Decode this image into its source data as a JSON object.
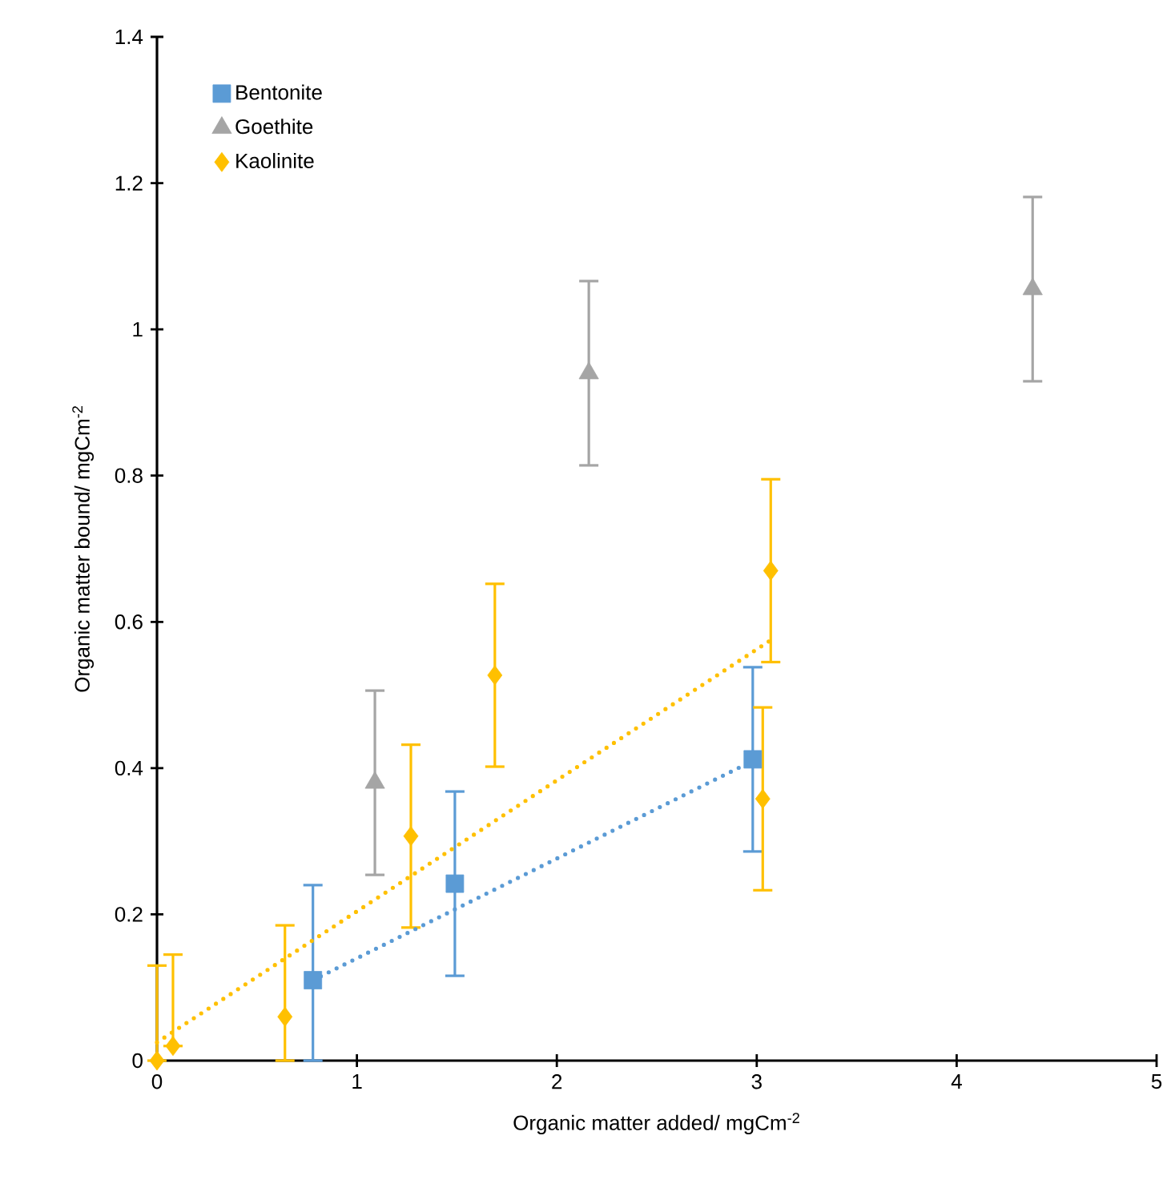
{
  "chart_data": {
    "type": "scatter",
    "xlabel": "Organic matter added/ mgCm$^{-2}$",
    "ylabel": "Organic matter bound/ mgCm$^{-2}$",
    "xlim": [
      0,
      5
    ],
    "ylim": [
      0,
      1.4
    ],
    "xticks": [
      0,
      1,
      2,
      3,
      4,
      5
    ],
    "yticks": [
      0,
      0.2,
      0.4,
      0.6,
      0.8,
      1,
      1.2,
      1.4
    ],
    "grid": false,
    "legend": "top left",
    "series": [
      {
        "name": "Bentonite",
        "color": "#5b9bd5",
        "marker": "square",
        "x": [
          0.78,
          1.49,
          2.98
        ],
        "values": [
          0.11,
          0.242,
          0.412
        ],
        "errors": [
          [
            0,
            0.24
          ],
          0.126,
          0.126
        ]
      },
      {
        "name": "Goethite",
        "color": "#a5a5a5",
        "marker": "triangle",
        "x": [
          1.09,
          2.16,
          4.38
        ],
        "values": [
          0.38,
          0.94,
          1.055
        ],
        "errors": [
          0.126,
          0.126,
          0.126
        ]
      },
      {
        "name": "Kaolinite",
        "color": "#ffc000",
        "marker": "diamond",
        "x": [
          0,
          0.08,
          0.64,
          1.27,
          1.69,
          3.03,
          3.07
        ],
        "values": [
          0,
          0.02,
          0.06,
          0.307,
          0.527,
          0.358,
          0.67
        ],
        "errors": [
          [
            0,
            0.13
          ],
          [
            0.02,
            0.145
          ],
          [
            0,
            0.185
          ],
          0.125,
          0.125,
          0.125,
          0.125
        ]
      },
      {
        "type": "line",
        "color": "#5b9bd5",
        "marker": "none",
        "line_style": "dotted",
        "x": [
          0.78,
          2.98
        ],
        "values": [
          0.11,
          0.41
        ]
      },
      {
        "type": "line",
        "color": "#ffc000",
        "marker": "none",
        "line_style": "dotted",
        "x": [
          0,
          3.07
        ],
        "values": [
          0.025,
          0.575
        ]
      }
    ]
  }
}
